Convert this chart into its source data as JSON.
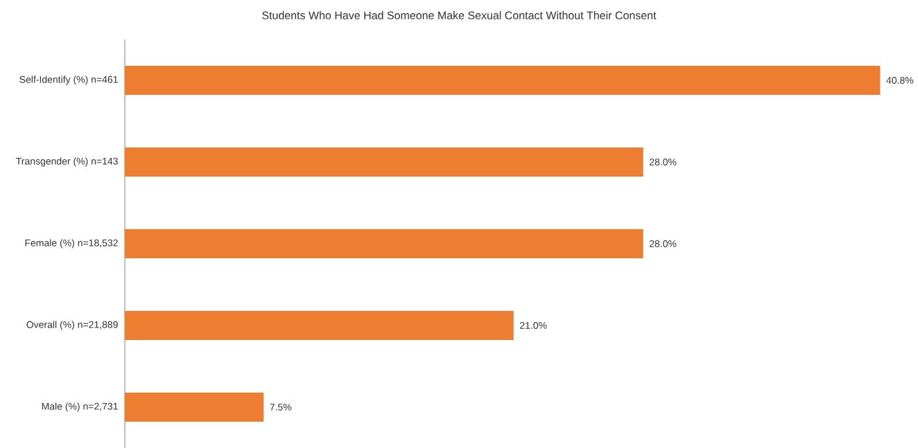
{
  "chart_data": {
    "type": "bar",
    "orientation": "horizontal",
    "title": "Students Who Have Had Someone Make Sexual Contact Without Their Consent",
    "categories": [
      "Self-Identify (%) n=461",
      "Transgender (%) n=143",
      "Female (%) n=18,532",
      "Overall (%) n=21,889",
      "Male (%) n=2,731"
    ],
    "values": [
      40.8,
      28.0,
      28.0,
      21.0,
      7.5
    ],
    "value_labels": [
      "40.8%",
      "28.0%",
      "28.0%",
      "21.0%",
      "7.5%"
    ],
    "color": "#ed7d31"
  }
}
